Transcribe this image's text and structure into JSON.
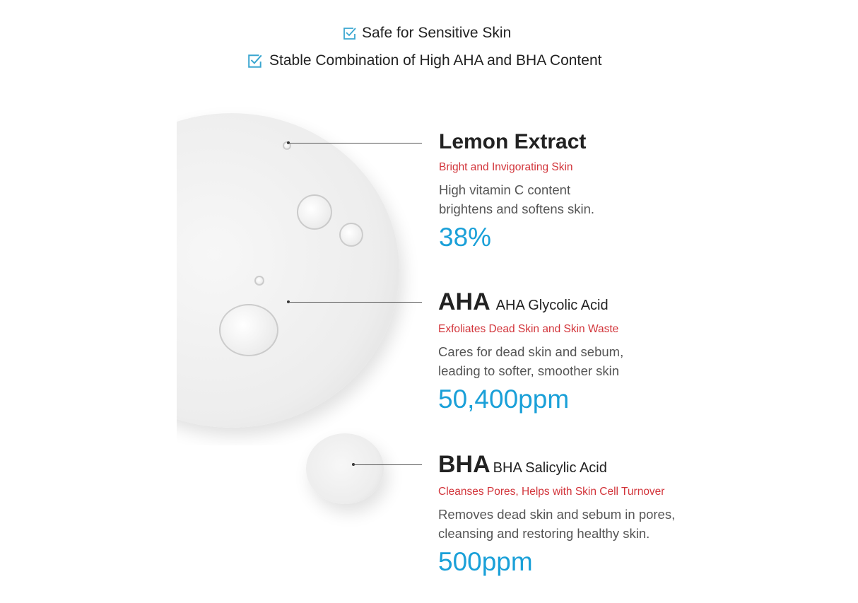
{
  "features": [
    {
      "icon": "checkbox-icon",
      "label": "Safe for Sensitive Skin"
    },
    {
      "icon": "checkbox-icon",
      "label": "Stable Combination of High AHA and BHA Content"
    }
  ],
  "accent_color": "#1aa0d8",
  "highlight_color": "#d2343a",
  "ingredients": [
    {
      "title": "Lemon Extract",
      "subtitle": "",
      "tagline": "Bright and Invigorating Skin",
      "desc1": "High vitamin C content",
      "desc2": "brightens and softens skin.",
      "amount": "38%"
    },
    {
      "title": "AHA",
      "subtitle": "AHA Glycolic Acid",
      "tagline": "Exfoliates Dead Skin and Skin Waste",
      "desc1": "Cares for dead skin and sebum,",
      "desc2": "leading to softer, smoother skin",
      "amount": "50,400ppm"
    },
    {
      "title": "BHA",
      "subtitle": "BHA Salicylic Acid",
      "tagline": "Cleanses Pores, Helps with Skin Cell Turnover",
      "desc1": "Removes dead skin and sebum in pores,",
      "desc2": "cleansing and restoring healthy skin.",
      "amount": "500ppm"
    }
  ]
}
